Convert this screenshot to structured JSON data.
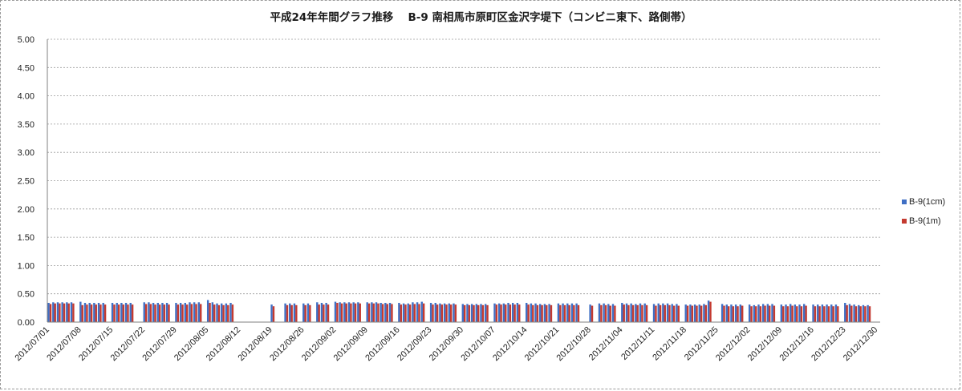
{
  "chart_data": {
    "type": "bar",
    "title": "平成24年年間グラフ推移　 B-9 南相馬市原町区金沢字堤下（コンビニ東下、路側帯）",
    "xlabel": "",
    "ylabel": "",
    "ylim": [
      0,
      5
    ],
    "yticks": [
      "0.00",
      "0.50",
      "1.00",
      "1.50",
      "2.00",
      "2.50",
      "3.00",
      "3.50",
      "4.00",
      "4.50",
      "5.00"
    ],
    "x_start": "2012-07-01",
    "x_end": "2012-12-30",
    "xtick_labels": [
      "2012/07/01",
      "2012/07/08",
      "2012/07/15",
      "2012/07/22",
      "2012/07/29",
      "2012/08/05",
      "2012/08/12",
      "2012/08/19",
      "2012/08/26",
      "2012/09/02",
      "2012/09/09",
      "2012/09/16",
      "2012/09/23",
      "2012/09/30",
      "2012/10/07",
      "2012/10/14",
      "2012/10/21",
      "2012/10/28",
      "2012/11/04",
      "2012/11/11",
      "2012/11/18",
      "2012/11/25",
      "2012/12/02",
      "2012/12/09",
      "2012/12/16",
      "2012/12/23",
      "2012/12/30"
    ],
    "grid": "horizontal-dashed",
    "legend_position": "right",
    "series": [
      {
        "name": "B-9(1cm)",
        "color": "#3f6fc4",
        "values": [
          0.34,
          0.35,
          0.35,
          0.35,
          0.35,
          0.35,
          null,
          0.36,
          0.34,
          0.34,
          0.34,
          0.34,
          0.34,
          null,
          0.34,
          0.34,
          0.34,
          0.34,
          0.34,
          null,
          null,
          0.35,
          0.35,
          0.34,
          0.34,
          0.34,
          0.34,
          null,
          0.34,
          0.34,
          0.34,
          0.35,
          0.35,
          0.35,
          null,
          0.39,
          0.35,
          0.33,
          0.33,
          0.33,
          0.34,
          null,
          null,
          null,
          null,
          null,
          null,
          null,
          null,
          0.31,
          null,
          null,
          0.33,
          0.33,
          0.33,
          null,
          0.33,
          0.33,
          null,
          0.35,
          0.34,
          0.34,
          null,
          0.36,
          0.35,
          0.35,
          0.35,
          0.35,
          0.35,
          null,
          0.35,
          0.35,
          0.35,
          0.34,
          0.34,
          0.34,
          null,
          0.34,
          0.33,
          0.33,
          0.35,
          0.35,
          0.36,
          null,
          0.34,
          0.34,
          0.33,
          0.33,
          0.33,
          0.33,
          null,
          0.32,
          0.32,
          0.32,
          0.32,
          0.32,
          0.32,
          null,
          0.33,
          0.33,
          0.33,
          0.34,
          0.34,
          0.34,
          null,
          0.34,
          0.33,
          0.33,
          0.32,
          0.32,
          0.32,
          null,
          0.33,
          0.33,
          0.33,
          0.33,
          0.33,
          null,
          null,
          0.31,
          null,
          0.33,
          0.33,
          0.32,
          0.32,
          null,
          0.34,
          0.33,
          0.33,
          0.32,
          0.33,
          0.33,
          null,
          0.32,
          0.33,
          0.33,
          0.33,
          0.32,
          0.32,
          null,
          0.31,
          0.31,
          0.31,
          0.31,
          0.32,
          0.38,
          null,
          null,
          0.32,
          0.31,
          0.31,
          0.31,
          0.31,
          null,
          0.31,
          0.3,
          0.31,
          0.32,
          0.32,
          0.32,
          null,
          0.31,
          0.31,
          0.32,
          0.31,
          0.31,
          0.32,
          null,
          0.31,
          0.31,
          0.31,
          0.31,
          0.31,
          0.31,
          null,
          0.34,
          0.32,
          0.31,
          0.3,
          0.3,
          0.3,
          null,
          null
        ]
      },
      {
        "name": "B-9(1m)",
        "color": "#c43a30",
        "values": [
          0.32,
          0.33,
          0.33,
          0.33,
          0.33,
          0.33,
          null,
          0.3,
          0.31,
          0.31,
          0.31,
          0.31,
          0.31,
          null,
          0.31,
          0.31,
          0.31,
          0.31,
          0.31,
          null,
          null,
          0.32,
          0.32,
          0.31,
          0.31,
          0.31,
          0.31,
          null,
          0.31,
          0.31,
          0.31,
          0.32,
          0.32,
          0.32,
          null,
          0.34,
          0.31,
          0.3,
          0.3,
          0.3,
          0.31,
          null,
          null,
          null,
          null,
          null,
          null,
          null,
          null,
          0.28,
          null,
          null,
          0.3,
          0.3,
          0.3,
          null,
          0.3,
          0.3,
          null,
          0.31,
          0.31,
          0.31,
          null,
          0.34,
          0.33,
          0.33,
          0.33,
          0.33,
          0.33,
          null,
          0.33,
          0.33,
          0.33,
          0.32,
          0.32,
          0.32,
          null,
          0.31,
          0.31,
          0.31,
          0.32,
          0.32,
          0.33,
          null,
          0.31,
          0.31,
          0.31,
          0.31,
          0.31,
          0.31,
          null,
          0.3,
          0.3,
          0.3,
          0.3,
          0.3,
          0.3,
          null,
          0.31,
          0.31,
          0.31,
          0.31,
          0.31,
          0.31,
          null,
          0.31,
          0.3,
          0.3,
          0.3,
          0.3,
          0.3,
          null,
          0.3,
          0.3,
          0.3,
          0.3,
          0.3,
          null,
          null,
          0.29,
          null,
          0.3,
          0.3,
          0.29,
          0.29,
          null,
          0.31,
          0.3,
          0.3,
          0.3,
          0.3,
          0.3,
          null,
          0.29,
          0.3,
          0.3,
          0.3,
          0.29,
          0.29,
          null,
          0.29,
          0.29,
          0.29,
          0.29,
          0.3,
          0.36,
          null,
          null,
          0.29,
          0.28,
          0.28,
          0.28,
          0.29,
          null,
          0.28,
          0.28,
          0.28,
          0.29,
          0.29,
          0.29,
          null,
          0.28,
          0.28,
          0.29,
          0.28,
          0.28,
          0.29,
          null,
          0.28,
          0.28,
          0.28,
          0.28,
          0.28,
          0.28,
          null,
          0.3,
          0.29,
          0.28,
          0.28,
          0.28,
          0.28,
          null,
          null
        ]
      }
    ]
  }
}
